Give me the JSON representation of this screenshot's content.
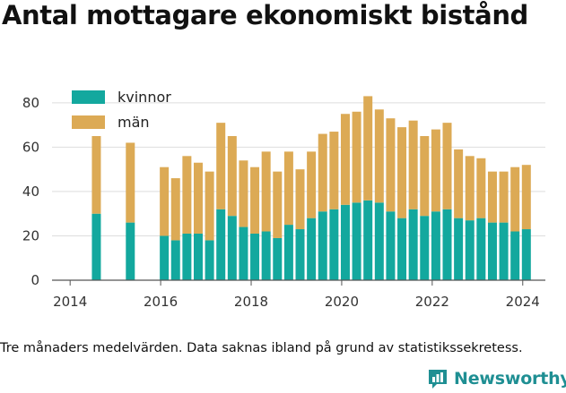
{
  "title": "Antal mottagare ekonomiskt bistånd",
  "footnote": "Tre månaders medelvärden. Data saknas ibland på grund av statistikssekretess.",
  "brand": "Newsworthy",
  "colors": {
    "kvinnor": "#13a89e",
    "man": "#dcaa55",
    "axis": "#555555",
    "grid": "#dddddd",
    "brand": "#1f8f93"
  },
  "chart_data": {
    "type": "bar",
    "stacked": true,
    "legend_position": "top-left",
    "grid": true,
    "ylim": [
      0,
      86
    ],
    "xlim": [
      2013.6,
      2024.5
    ],
    "yticks": [
      0,
      20,
      40,
      60,
      80
    ],
    "xticks": [
      2014,
      2016,
      2018,
      2020,
      2022,
      2024
    ],
    "x": [
      2014.58,
      2015.33,
      2016.08,
      2016.33,
      2016.58,
      2016.83,
      2017.08,
      2017.33,
      2017.58,
      2017.83,
      2018.08,
      2018.33,
      2018.58,
      2018.83,
      2019.08,
      2019.33,
      2019.58,
      2019.83,
      2020.08,
      2020.33,
      2020.58,
      2020.83,
      2021.08,
      2021.33,
      2021.58,
      2021.83,
      2022.08,
      2022.33,
      2022.58,
      2022.83,
      2023.08,
      2023.33,
      2023.58,
      2023.83,
      2024.08
    ],
    "series": [
      {
        "name": "kvinnor",
        "values": [
          30,
          26,
          20,
          18,
          21,
          21,
          18,
          32,
          29,
          24,
          21,
          22,
          19,
          25,
          23,
          28,
          31,
          32,
          34,
          35,
          36,
          35,
          31,
          28,
          32,
          29,
          31,
          32,
          28,
          27,
          28,
          26,
          26,
          22,
          23
        ]
      },
      {
        "name": "män",
        "values": [
          35,
          36,
          31,
          28,
          35,
          32,
          31,
          39,
          36,
          30,
          30,
          36,
          30,
          33,
          27,
          30,
          35,
          35,
          41,
          41,
          47,
          42,
          42,
          41,
          40,
          36,
          37,
          39,
          31,
          29,
          27,
          23,
          23,
          29,
          29
        ]
      }
    ]
  }
}
